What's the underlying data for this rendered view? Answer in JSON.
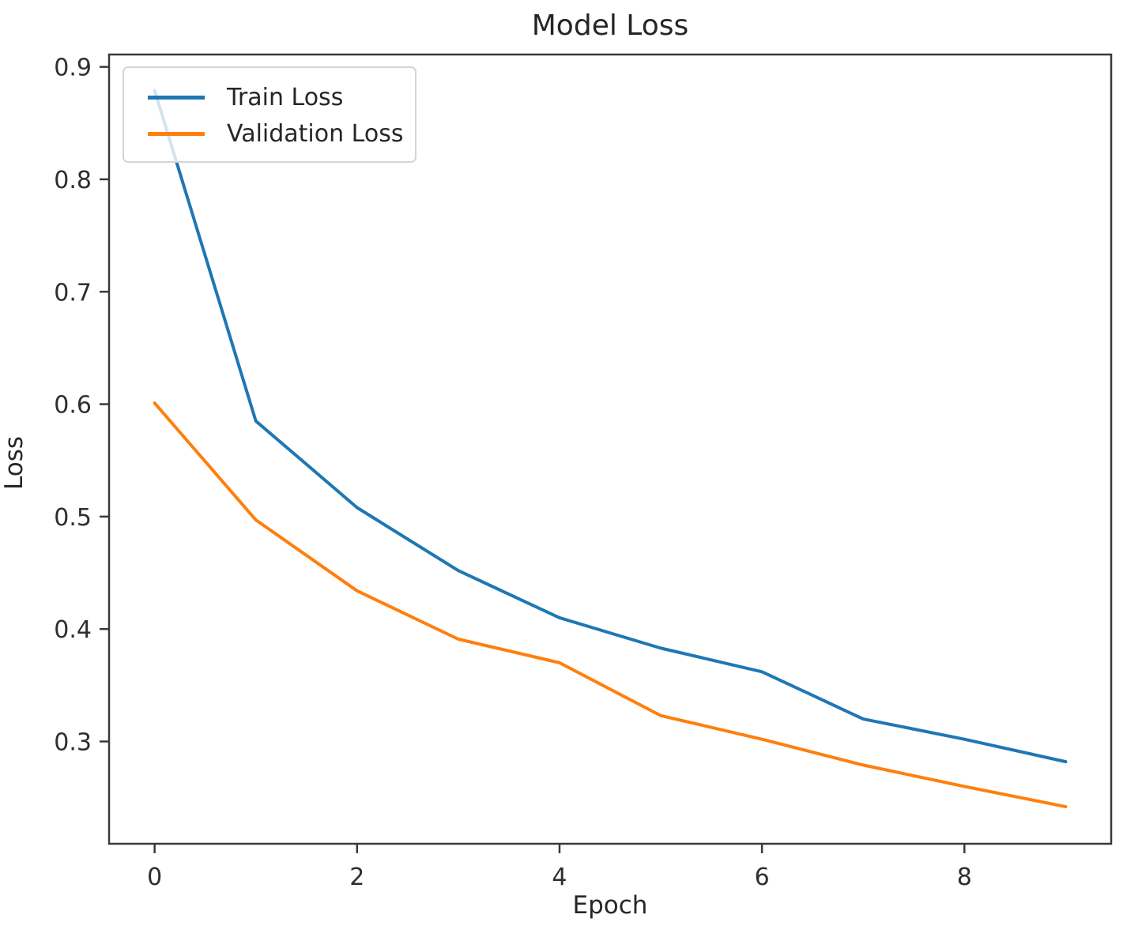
{
  "chart_data": {
    "type": "line",
    "title": "Model Loss",
    "xlabel": "Epoch",
    "ylabel": "Loss",
    "x": [
      0,
      1,
      2,
      3,
      4,
      5,
      6,
      7,
      8,
      9
    ],
    "series": [
      {
        "name": "Train Loss",
        "color": "#1f77b4",
        "values": [
          0.879,
          0.585,
          0.508,
          0.452,
          0.41,
          0.383,
          0.362,
          0.32,
          0.302,
          0.282
        ]
      },
      {
        "name": "Validation Loss",
        "color": "#ff7f0e",
        "values": [
          0.601,
          0.497,
          0.434,
          0.391,
          0.37,
          0.323,
          0.302,
          0.279,
          0.26,
          0.242
        ]
      }
    ],
    "xlim": [
      -0.45,
      9.45
    ],
    "ylim": [
      0.209,
      0.911
    ],
    "xticks": [
      0,
      2,
      4,
      6,
      8
    ],
    "yticks": [
      0.9,
      0.8,
      0.7,
      0.6,
      0.5,
      0.4,
      0.3
    ],
    "legend_position": "upper left",
    "grid": false,
    "spine_color": "#3a3a3a",
    "tick_label_color": "#2e2e2e"
  }
}
